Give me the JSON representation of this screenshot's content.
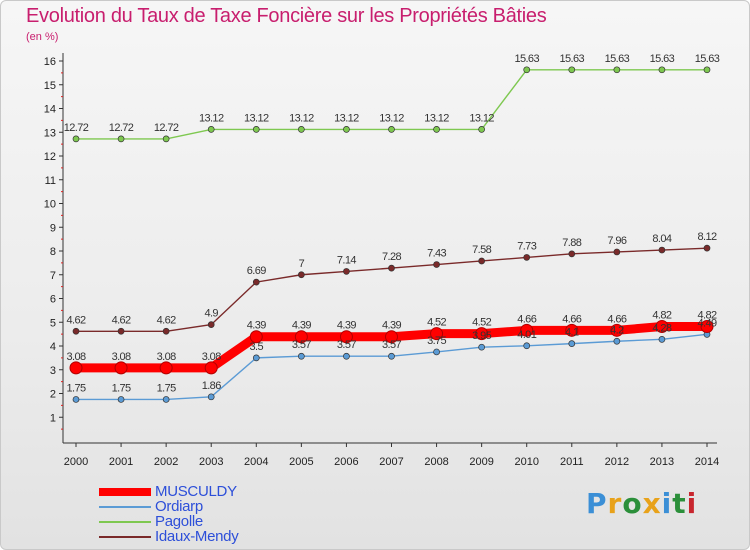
{
  "title": "Evolution du Taux de Taxe Foncière sur les Propriétés Bâties",
  "subtitle": "(en %)",
  "logo": {
    "text": "Proxiti",
    "colors": [
      "#3b8fd6",
      "#e8a21a",
      "#2b8f3a",
      "#e8a21a",
      "#3b8fd6",
      "#2b8f3a",
      "#c8262e"
    ]
  },
  "chart_data": {
    "type": "line",
    "title": "Evolution du Taux de Taxe Foncière sur les Propriétés Bâties",
    "ylabel": "(en %)",
    "xlabel": "",
    "x": [
      2000,
      2001,
      2002,
      2003,
      2004,
      2005,
      2006,
      2007,
      2008,
      2009,
      2010,
      2011,
      2012,
      2013,
      2014
    ],
    "ylim": [
      0,
      16
    ],
    "yticks": [
      1,
      2,
      3,
      4,
      5,
      6,
      7,
      8,
      9,
      10,
      11,
      12,
      13,
      14,
      15,
      16
    ],
    "grid": false,
    "legend": "bottom-left",
    "series": [
      {
        "name": "MUSCULDY",
        "color": "#ff0000",
        "emphasis": true,
        "values": [
          3.08,
          3.08,
          3.08,
          3.08,
          4.39,
          4.39,
          4.39,
          4.39,
          4.52,
          4.52,
          4.66,
          4.66,
          4.66,
          4.82,
          4.82
        ],
        "labels": [
          "3.08",
          "3.08",
          "3.08",
          "3.08",
          "4.39",
          "4.39",
          "4.39",
          "4.39",
          "4.52",
          "4.52",
          "4.66",
          "4.66",
          "4.66",
          "4.82",
          "4.82"
        ]
      },
      {
        "name": "Ordiarp",
        "color": "#5b9bd5",
        "emphasis": false,
        "values": [
          1.75,
          1.75,
          1.75,
          1.86,
          3.5,
          3.57,
          3.57,
          3.57,
          3.75,
          3.95,
          4.01,
          4.1,
          4.2,
          4.28,
          4.49
        ],
        "labels": [
          "1.75",
          "1.75",
          "1.75",
          "1.86",
          "3.5",
          "3.57",
          "3.57",
          "3.57",
          "3.75",
          "3.95",
          "4.01",
          "4.1",
          "4.2",
          "4.28",
          "4.49"
        ]
      },
      {
        "name": "Pagolle",
        "color": "#7ec850",
        "emphasis": false,
        "values": [
          12.72,
          12.72,
          12.72,
          13.12,
          13.12,
          13.12,
          13.12,
          13.12,
          13.12,
          13.12,
          15.63,
          15.63,
          15.63,
          15.63,
          15.63
        ],
        "labels": [
          "12.72",
          "12.72",
          "12.72",
          "13.12",
          "13.12",
          "13.12",
          "13.12",
          "13.12",
          "13.12",
          "13.12",
          "15.63",
          "15.63",
          "15.63",
          "15.63",
          "15.63"
        ]
      },
      {
        "name": "Idaux-Mendy",
        "color": "#7a2a2a",
        "emphasis": false,
        "values": [
          4.62,
          4.62,
          4.62,
          4.9,
          6.69,
          7,
          7.14,
          7.28,
          7.43,
          7.58,
          7.73,
          7.88,
          7.96,
          8.04,
          8.12
        ],
        "labels": [
          "4.62",
          "4.62",
          "4.62",
          "4.9",
          "6.69",
          "7",
          "7.14",
          "7.28",
          "7.43",
          "7.58",
          "7.73",
          "7.88",
          "7.96",
          "8.04",
          "8.12"
        ]
      }
    ]
  }
}
